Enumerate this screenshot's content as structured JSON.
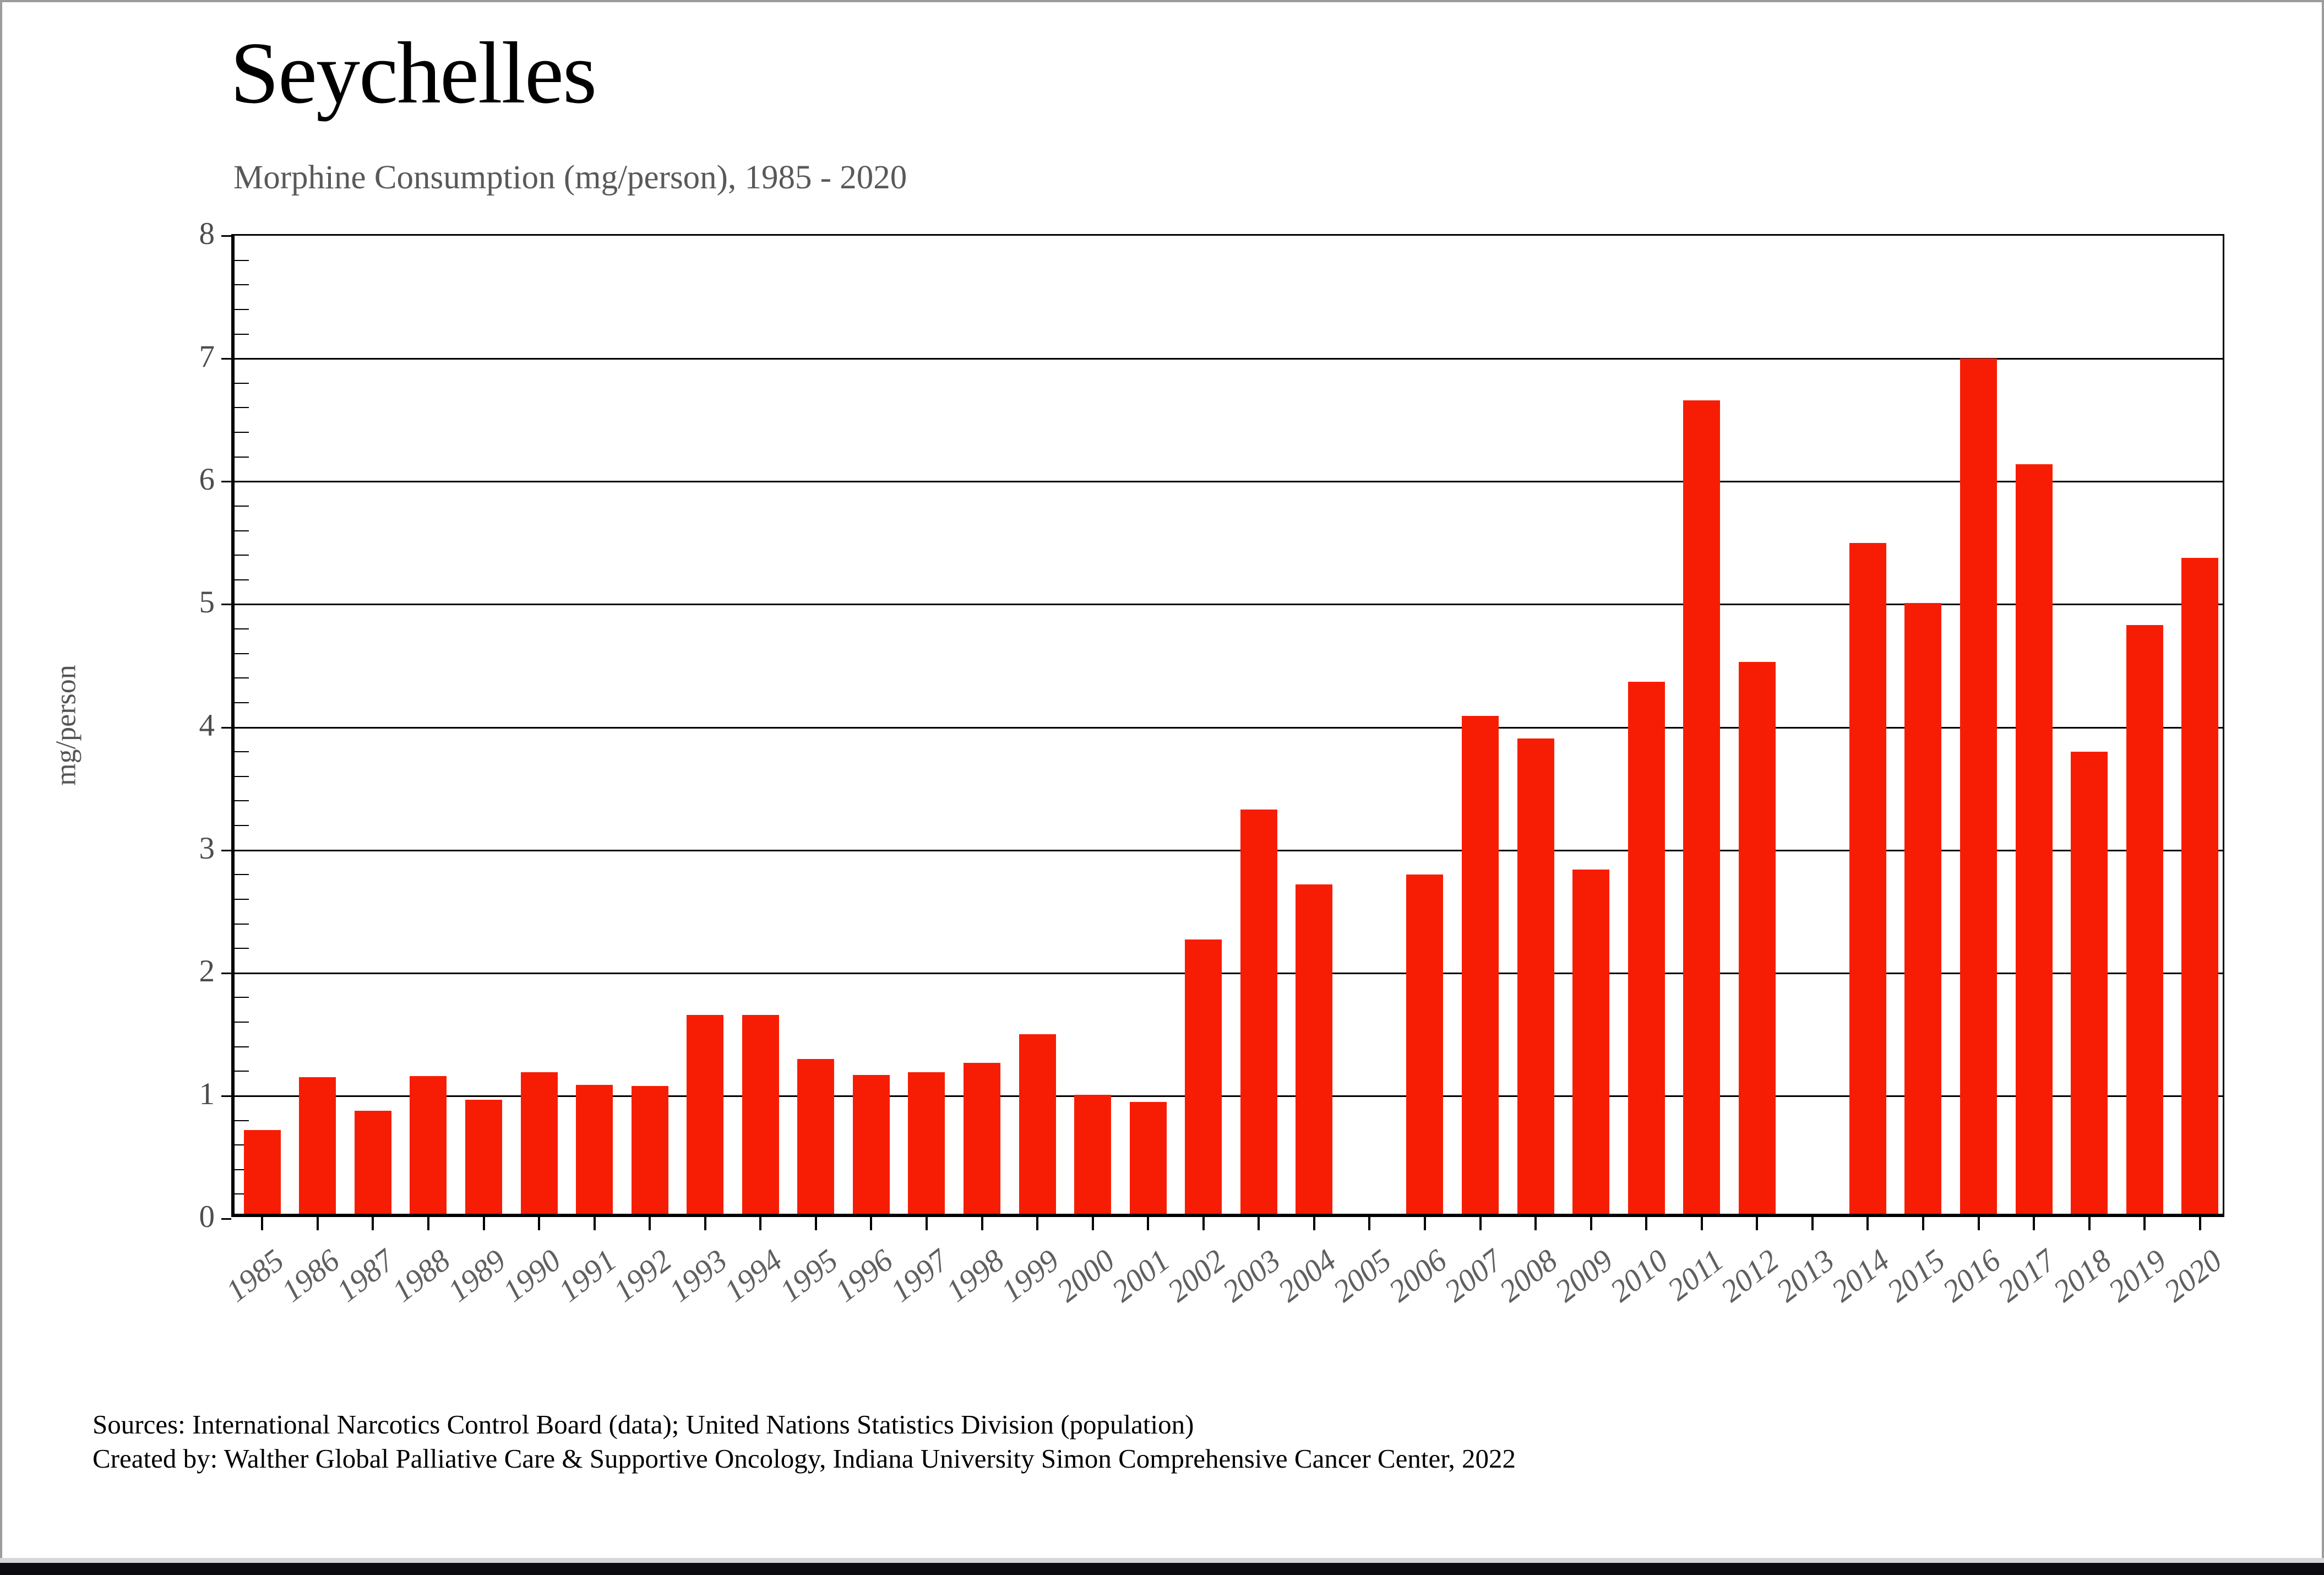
{
  "chart": {
    "title": "Seychelles",
    "subtitle": "Morphine Consumption (mg/person), 1985 - 2020",
    "y_axis_title": "mg/person"
  },
  "chart_data": {
    "type": "bar",
    "title": "Seychelles",
    "subtitle": "Morphine Consumption (mg/person), 1985 - 2020",
    "xlabel": "",
    "ylabel": "mg/person",
    "ylim": [
      0,
      8
    ],
    "y_major_ticks": [
      0,
      1,
      2,
      3,
      4,
      5,
      6,
      7,
      8
    ],
    "y_minor_step": 0.2,
    "grid": "horizontal-major",
    "legend": "none",
    "categories": [
      "1985",
      "1986",
      "1987",
      "1988",
      "1989",
      "1990",
      "1991",
      "1992",
      "1993",
      "1994",
      "1995",
      "1996",
      "1997",
      "1998",
      "1999",
      "2000",
      "2001",
      "2002",
      "2003",
      "2004",
      "2005",
      "2006",
      "2007",
      "2008",
      "2009",
      "2010",
      "2011",
      "2012",
      "2013",
      "2014",
      "2015",
      "2016",
      "2017",
      "2018",
      "2019",
      "2020"
    ],
    "values": [
      0.68,
      1.11,
      0.84,
      1.12,
      0.93,
      1.15,
      1.05,
      1.04,
      1.62,
      1.62,
      1.26,
      1.13,
      1.15,
      1.23,
      1.46,
      0.97,
      0.91,
      2.23,
      3.29,
      2.68,
      0,
      2.76,
      4.05,
      3.87,
      2.8,
      4.33,
      6.62,
      4.49,
      0,
      5.46,
      4.97,
      6.96,
      6.1,
      3.76,
      4.79,
      5.34
    ]
  },
  "colors": {
    "bar": "#f71d04",
    "gridline": "#000000",
    "subtitle": "#595959",
    "axis_labels": "#5f5f5f",
    "bottom_strip": "#0b0b10",
    "page_border": "#9c9c9c"
  },
  "footer": {
    "line1": "Sources: International Narcotics Control Board (data); United Nations Statistics Division (population)",
    "line2": "Created by: Walther  Global Palliative Care & Supportive Oncology, Indiana University Simon Comprehensive Cancer Center, 2022"
  }
}
